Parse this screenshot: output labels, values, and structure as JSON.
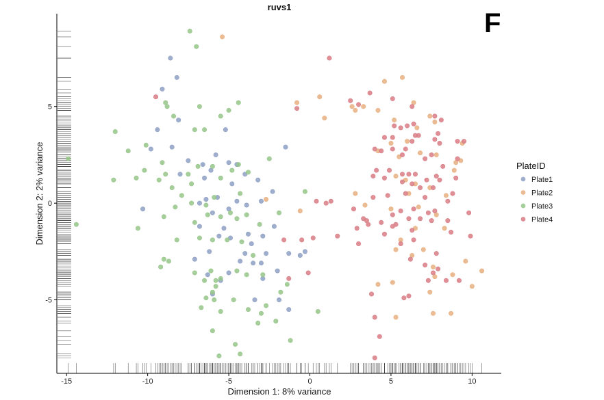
{
  "chart_data": {
    "type": "scatter",
    "title": "ruvs1",
    "panel_letter": "F",
    "xlabel": "Dimension 1: 8% variance",
    "ylabel": "Dimension 2: 2% variance",
    "xlim": [
      -15.6,
      11.8
    ],
    "ylim": [
      -8.8,
      9.8
    ],
    "xticks": [
      -15,
      -10,
      -5,
      0,
      5,
      10
    ],
    "xtick_labels": [
      "-15",
      "-10",
      "-5",
      "0",
      "5",
      "10"
    ],
    "yticks": [
      -5,
      0,
      5
    ],
    "ytick_labels": [
      "-5",
      "0",
      "5"
    ],
    "grid": false,
    "rug": true,
    "legend": {
      "title": "PlateID",
      "position": "right"
    },
    "series": [
      {
        "name": "Plate1",
        "color": "#8ea0c4",
        "points": [
          [
            -8.6,
            7.5
          ],
          [
            -8.2,
            6.5
          ],
          [
            -9.1,
            5.9
          ],
          [
            -9.4,
            3.8
          ],
          [
            -8.1,
            4.3
          ],
          [
            -9.8,
            2.8
          ],
          [
            -8.5,
            2.9
          ],
          [
            -5.2,
            3.8
          ],
          [
            -8.0,
            1.5
          ],
          [
            -7.5,
            2.2
          ],
          [
            -6.6,
            2.0
          ],
          [
            -5.8,
            2.5
          ],
          [
            -5.0,
            2.1
          ],
          [
            -4.5,
            2.0
          ],
          [
            -6.1,
            1.7
          ],
          [
            -6.5,
            1.3
          ],
          [
            -4.0,
            1.5
          ],
          [
            -4.8,
            1.0
          ],
          [
            -3.2,
            1.2
          ],
          [
            -1.5,
            2.9
          ],
          [
            -5.3,
            -1.3
          ],
          [
            -6.0,
            -0.5
          ],
          [
            -6.8,
            0.0
          ],
          [
            -6.4,
            0.2
          ],
          [
            -5.7,
            0.3
          ],
          [
            -4.5,
            0.1
          ],
          [
            -5.0,
            -0.3
          ],
          [
            -3.9,
            -0.1
          ],
          [
            -3.0,
            0.1
          ],
          [
            -2.3,
            0.6
          ],
          [
            -10.3,
            -0.3
          ],
          [
            -5.6,
            -1.7
          ],
          [
            -4.9,
            -1.8
          ],
          [
            -3.8,
            -1.6
          ],
          [
            -3.6,
            -2.1
          ],
          [
            -2.2,
            -1.2
          ],
          [
            -4.0,
            -2.6
          ],
          [
            -4.3,
            -3.0
          ],
          [
            -3.5,
            -3.1
          ],
          [
            -2.7,
            -2.6
          ],
          [
            -1.3,
            -2.6
          ],
          [
            -6.3,
            -3.7
          ],
          [
            -5.5,
            -4.0
          ],
          [
            -5.0,
            -3.6
          ],
          [
            -3.0,
            -3.1
          ],
          [
            -2.0,
            -3.5
          ],
          [
            -2.9,
            -3.9
          ],
          [
            -0.6,
            -2.7
          ],
          [
            -0.3,
            -2.5
          ],
          [
            -6.0,
            -4.7
          ],
          [
            -1.9,
            -5.0
          ],
          [
            -1.3,
            -5.5
          ],
          [
            -3.4,
            -5.0
          ],
          [
            -7.1,
            -2.9
          ],
          [
            -6.2,
            -2.5
          ],
          [
            -6.8,
            -1.2
          ],
          [
            -2.9,
            -1.7
          ]
        ]
      },
      {
        "name": "Plate2",
        "color": "#e8b081",
        "points": [
          [
            -5.4,
            8.6
          ],
          [
            -0.8,
            5.2
          ],
          [
            0.6,
            5.5
          ],
          [
            0.9,
            4.4
          ],
          [
            4.6,
            6.3
          ],
          [
            5.7,
            6.5
          ],
          [
            3.3,
            5.0
          ],
          [
            4.2,
            4.8
          ],
          [
            2.6,
            5.0
          ],
          [
            2.8,
            4.8
          ],
          [
            5.2,
            4.3
          ],
          [
            6.4,
            5.2
          ],
          [
            6.6,
            3.9
          ],
          [
            7.4,
            4.5
          ],
          [
            7.7,
            4.2
          ],
          [
            5.0,
            3.1
          ],
          [
            6.0,
            3.2
          ],
          [
            4.2,
            2.7
          ],
          [
            5.5,
            2.4
          ],
          [
            6.8,
            2.6
          ],
          [
            7.8,
            2.5
          ],
          [
            9.4,
            3.1
          ],
          [
            9.0,
            2.1
          ],
          [
            9.3,
            2.2
          ],
          [
            8.9,
            1.7
          ],
          [
            5.3,
            1.4
          ],
          [
            5.9,
            1.2
          ],
          [
            6.5,
            1.0
          ],
          [
            7.4,
            0.8
          ],
          [
            6.1,
            0.5
          ],
          [
            8.4,
            0.4
          ],
          [
            6.7,
            -0.2
          ],
          [
            5.0,
            -0.3
          ],
          [
            7.8,
            -0.6
          ],
          [
            6.5,
            -1.3
          ],
          [
            8.3,
            -1.3
          ],
          [
            5.6,
            -1.9
          ],
          [
            -2.7,
            0.2
          ],
          [
            -0.6,
            -0.4
          ],
          [
            2.8,
            0.5
          ],
          [
            3.4,
            -0.1
          ],
          [
            7.0,
            -2.4
          ],
          [
            5.3,
            -2.4
          ],
          [
            7.6,
            -3.3
          ],
          [
            8.8,
            -3.7
          ],
          [
            10.6,
            -3.5
          ],
          [
            7.7,
            -3.8
          ],
          [
            9.6,
            -3.0
          ],
          [
            10.0,
            -4.3
          ],
          [
            4.2,
            -4.2
          ],
          [
            5.1,
            -4.1
          ],
          [
            7.4,
            -4.6
          ],
          [
            5.3,
            -5.9
          ],
          [
            7.6,
            -5.7
          ],
          [
            8.7,
            -5.7
          ],
          [
            6.3,
            -2.7
          ]
        ]
      },
      {
        "name": "Plate3",
        "color": "#96c689",
        "points": [
          [
            -7.4,
            8.9
          ],
          [
            -7.0,
            8.1
          ],
          [
            -8.9,
            5.2
          ],
          [
            -8.8,
            5.0
          ],
          [
            -8.4,
            4.5
          ],
          [
            -6.8,
            5.0
          ],
          [
            -5.5,
            4.5
          ],
          [
            -5.0,
            4.8
          ],
          [
            -4.4,
            5.2
          ],
          [
            -6.5,
            3.8
          ],
          [
            -12.0,
            3.7
          ],
          [
            -7.1,
            3.8
          ],
          [
            -10.1,
            3.0
          ],
          [
            -11.2,
            2.7
          ],
          [
            -9.1,
            2.1
          ],
          [
            -10.2,
            1.7
          ],
          [
            -8.9,
            1.5
          ],
          [
            -7.5,
            1.5
          ],
          [
            -6.9,
            1.9
          ],
          [
            -6.0,
            1.9
          ],
          [
            -4.8,
            1.7
          ],
          [
            -4.4,
            2.0
          ],
          [
            -3.8,
            1.6
          ],
          [
            -2.5,
            2.3
          ],
          [
            -14.9,
            2.3
          ],
          [
            -12.1,
            1.2
          ],
          [
            -10.7,
            1.3
          ],
          [
            -9.3,
            1.2
          ],
          [
            -7.3,
            1.0
          ],
          [
            -8.5,
            0.8
          ],
          [
            -5.5,
            1.3
          ],
          [
            -4.3,
            0.5
          ],
          [
            -7.9,
            0.4
          ],
          [
            -7.3,
            0.0
          ],
          [
            -6.4,
            -0.1
          ],
          [
            -5.9,
            0.3
          ],
          [
            -4.9,
            -0.5
          ],
          [
            -3.9,
            -0.6
          ],
          [
            -3.1,
            -1.1
          ],
          [
            -1.9,
            -0.5
          ],
          [
            -0.3,
            0.6
          ],
          [
            -14.4,
            -1.1
          ],
          [
            -10.6,
            -1.3
          ],
          [
            -9.0,
            -0.7
          ],
          [
            -8.3,
            -0.2
          ],
          [
            -7.1,
            -1.0
          ],
          [
            -6.3,
            -0.6
          ],
          [
            -5.5,
            -0.7
          ],
          [
            -4.5,
            -0.8
          ],
          [
            -8.2,
            -1.9
          ],
          [
            -6.8,
            -1.8
          ],
          [
            -6.0,
            -1.9
          ],
          [
            -5.1,
            -1.9
          ],
          [
            -4.2,
            -2.0
          ],
          [
            -3.5,
            -2.7
          ],
          [
            -9.0,
            -2.9
          ],
          [
            -8.7,
            -3.0
          ],
          [
            -9.2,
            -3.3
          ],
          [
            -7.1,
            -3.6
          ],
          [
            -6.5,
            -4.0
          ],
          [
            -6.1,
            -3.5
          ],
          [
            -5.8,
            -4.0
          ],
          [
            -5.5,
            -3.9
          ],
          [
            -4.5,
            -3.5
          ],
          [
            -3.9,
            -3.7
          ],
          [
            -2.9,
            -3.7
          ],
          [
            -5.8,
            -4.3
          ],
          [
            -6.0,
            -4.6
          ],
          [
            -6.4,
            -4.9
          ],
          [
            -5.9,
            -5.0
          ],
          [
            -4.7,
            -5.0
          ],
          [
            -3.0,
            -5.7
          ],
          [
            -1.4,
            -4.2
          ],
          [
            -1.8,
            -4.6
          ],
          [
            -2.7,
            -5.3
          ],
          [
            -6.7,
            -5.4
          ],
          [
            -5.5,
            -5.6
          ],
          [
            -2.1,
            -6.1
          ],
          [
            -3.2,
            -6.2
          ],
          [
            -6.0,
            -6.6
          ],
          [
            0.5,
            -5.6
          ],
          [
            -4.6,
            -7.3
          ],
          [
            -1.2,
            -7.1
          ],
          [
            -5.6,
            -7.9
          ],
          [
            -4.3,
            -7.8
          ],
          [
            -3.8,
            -5.5
          ]
        ]
      },
      {
        "name": "Plate4",
        "color": "#d97c85",
        "points": [
          [
            1.2,
            7.5
          ],
          [
            -9.5,
            5.5
          ],
          [
            -0.8,
            4.9
          ],
          [
            3.7,
            5.7
          ],
          [
            2.5,
            5.3
          ],
          [
            5.1,
            5.4
          ],
          [
            6.3,
            5.0
          ],
          [
            3.0,
            5.1
          ],
          [
            7.7,
            4.5
          ],
          [
            8.1,
            4.3
          ],
          [
            5.2,
            4.0
          ],
          [
            6.0,
            4.0
          ],
          [
            6.4,
            4.1
          ],
          [
            5.6,
            3.9
          ],
          [
            7.9,
            3.6
          ],
          [
            4.6,
            3.4
          ],
          [
            5.1,
            3.4
          ],
          [
            6.5,
            3.5
          ],
          [
            7.7,
            3.3
          ],
          [
            8.0,
            3.1
          ],
          [
            9.1,
            3.2
          ],
          [
            9.5,
            3.2
          ],
          [
            4.0,
            2.8
          ],
          [
            5.1,
            2.8
          ],
          [
            5.7,
            2.5
          ],
          [
            5.9,
            2.8
          ],
          [
            6.3,
            3.2
          ],
          [
            6.7,
            3.5
          ],
          [
            4.4,
            2.7
          ],
          [
            7.1,
            2.3
          ],
          [
            7.5,
            2.5
          ],
          [
            8.2,
            1.9
          ],
          [
            9.1,
            2.3
          ],
          [
            4.1,
            1.7
          ],
          [
            4.9,
            1.7
          ],
          [
            5.7,
            1.5
          ],
          [
            6.1,
            1.5
          ],
          [
            6.5,
            1.5
          ],
          [
            7.2,
            1.2
          ],
          [
            7.8,
            1.4
          ],
          [
            8.0,
            1.2
          ],
          [
            9.0,
            1.3
          ],
          [
            3.9,
            1.4
          ],
          [
            4.6,
            1.3
          ],
          [
            5.7,
            1.1
          ],
          [
            6.3,
            1.0
          ],
          [
            6.8,
            0.8
          ],
          [
            7.6,
            0.8
          ],
          [
            8.8,
            0.5
          ],
          [
            3.9,
            0.3
          ],
          [
            4.8,
            0.4
          ],
          [
            5.9,
            0.5
          ],
          [
            7.1,
            0.3
          ],
          [
            8.5,
            0.1
          ],
          [
            0.4,
            0.1
          ],
          [
            1.0,
            0.0
          ],
          [
            1.3,
            0.1
          ],
          [
            2.7,
            -0.3
          ],
          [
            3.3,
            -0.8
          ],
          [
            3.5,
            -0.9
          ],
          [
            5.1,
            -0.6
          ],
          [
            5.6,
            -0.4
          ],
          [
            6.4,
            -0.3
          ],
          [
            7.3,
            -0.5
          ],
          [
            7.7,
            -0.4
          ],
          [
            9.8,
            -0.5
          ],
          [
            3.6,
            -1.1
          ],
          [
            4.4,
            -1.0
          ],
          [
            5.3,
            -1.1
          ],
          [
            6.1,
            -0.8
          ],
          [
            6.8,
            -0.8
          ],
          [
            7.5,
            -0.9
          ],
          [
            8.5,
            -0.9
          ],
          [
            1.7,
            -1.7
          ],
          [
            2.9,
            -1.3
          ],
          [
            5.1,
            -1.2
          ],
          [
            6.3,
            -1.4
          ],
          [
            8.7,
            -1.5
          ],
          [
            4.6,
            -1.6
          ],
          [
            6.4,
            -1.9
          ],
          [
            -1.6,
            -1.9
          ],
          [
            -0.5,
            -1.9
          ],
          [
            0.2,
            -1.8
          ],
          [
            3.0,
            -2.1
          ],
          [
            5.6,
            -2.1
          ],
          [
            7.8,
            -2.6
          ],
          [
            9.9,
            -1.7
          ],
          [
            6.2,
            -2.9
          ],
          [
            7.6,
            -3.6
          ],
          [
            7.1,
            -3.2
          ],
          [
            7.9,
            -3.4
          ],
          [
            9.2,
            -4.0
          ],
          [
            7.3,
            -4.0
          ],
          [
            -1.3,
            -3.9
          ],
          [
            3.8,
            -4.7
          ],
          [
            5.8,
            -4.9
          ],
          [
            6.1,
            -4.8
          ],
          [
            -0.1,
            -3.6
          ],
          [
            4.0,
            -5.9
          ],
          [
            4.3,
            -6.9
          ],
          [
            4.0,
            -8.0
          ],
          [
            8.4,
            -4.0
          ]
        ]
      }
    ]
  }
}
